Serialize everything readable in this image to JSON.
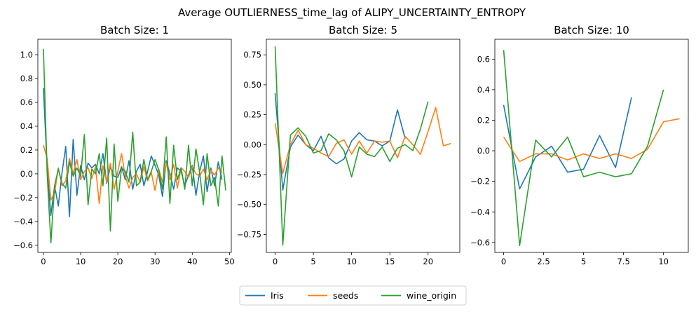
{
  "suptitle": "Average OUTLIERNESS_time_lag of ALIPY_UNCERTAINTY_ENTROPY",
  "colors": {
    "Iris": "#1f77b4",
    "seeds": "#ff7f0e",
    "wine_origin": "#2ca02c"
  },
  "legend": {
    "placement": "bottom-center",
    "entries": [
      "Iris",
      "seeds",
      "wine_origin"
    ]
  },
  "chart_data": [
    {
      "type": "line",
      "title": "Batch Size: 1",
      "xlim": [
        -1.5,
        50.5
      ],
      "ylim": [
        -0.66,
        1.13
      ],
      "xticks": [
        0,
        10,
        20,
        30,
        40,
        50
      ],
      "yticks": [
        -0.6,
        -0.4,
        -0.2,
        0.0,
        0.2,
        0.4,
        0.6,
        0.8,
        1.0
      ],
      "ytick_labels": [
        "−0.6",
        "−0.4",
        "−0.2",
        "0.0",
        "0.2",
        "0.4",
        "0.6",
        "0.8",
        "1.0"
      ],
      "series": [
        {
          "name": "Iris",
          "values": [
            0.72,
            0.05,
            -0.35,
            -0.1,
            -0.27,
            0.01,
            0.23,
            -0.36,
            0.29,
            -0.18,
            0.07,
            -0.05,
            0.09,
            0.05,
            0.08,
            0.0,
            0.17,
            -0.08,
            0.06,
            -0.02,
            -0.03,
            0.06,
            -0.05,
            0.11,
            -0.13,
            0.02,
            0.08,
            -0.1,
            0.02,
            0.15,
            0.07,
            -0.01,
            -0.19,
            0.11,
            0.0,
            -0.13,
            0.05,
            0.02,
            -0.1,
            -0.01,
            0.07,
            -0.18,
            0.02,
            0.15,
            -0.15,
            0.05,
            -0.1,
            0.1,
            -0.05
          ]
        },
        {
          "name": "seeds",
          "values": [
            0.24,
            0.13,
            -0.22,
            -0.16,
            0.05,
            -0.1,
            -0.06,
            0.13,
            0.0,
            0.12,
            -0.05,
            0.02,
            0.05,
            -0.04,
            0.06,
            -0.25,
            0.07,
            -0.07,
            0.09,
            -0.13,
            0.02,
            0.17,
            -0.02,
            -0.12,
            -0.03,
            0.0,
            -0.07,
            0.06,
            -0.06,
            0.01,
            -0.14,
            0.04,
            -0.07,
            0.09,
            -0.05,
            0.08,
            -0.12,
            0.05,
            0.02,
            -0.03,
            0.06,
            0.0,
            -0.02,
            0.04,
            -0.05,
            0.03,
            -0.01,
            0.05,
            0.01
          ]
        },
        {
          "name": "wine_origin",
          "values": [
            1.05,
            0.0,
            -0.58,
            -0.1,
            0.04,
            -0.08,
            -0.12,
            0.1,
            -0.02,
            0.05,
            -0.02,
            0.33,
            -0.26,
            0.04,
            0.0,
            0.17,
            -0.1,
            0.3,
            -0.48,
            0.25,
            -0.23,
            0.05,
            0.02,
            -0.07,
            0.35,
            -0.1,
            -0.07,
            0.12,
            -0.05,
            0.02,
            0.12,
            0.03,
            -0.13,
            0.31,
            -0.25,
            0.24,
            -0.05,
            0.05,
            -0.13,
            0.24,
            -0.1,
            0.21,
            0.01,
            -0.26,
            0.17,
            -0.1,
            -0.03,
            -0.27,
            0.15,
            -0.14
          ]
        }
      ]
    },
    {
      "type": "line",
      "title": "Batch Size: 5",
      "xlim": [
        -1.15,
        24.15
      ],
      "ylim": [
        -0.9,
        0.88
      ],
      "xticks": [
        0,
        5,
        10,
        15,
        20
      ],
      "yticks": [
        -0.75,
        -0.5,
        -0.25,
        0.0,
        0.25,
        0.5,
        0.75
      ],
      "ytick_labels": [
        "−0.75",
        "−0.50",
        "−0.25",
        "0.00",
        "0.25",
        "0.50",
        "0.75"
      ],
      "series": [
        {
          "name": "Iris",
          "values": [
            0.43,
            -0.38,
            -0.02,
            0.08,
            0.0,
            -0.05,
            0.07,
            -0.11,
            -0.16,
            -0.12,
            0.03,
            0.1,
            0.04,
            0.03,
            -0.01,
            0.03,
            0.29,
            0.05
          ]
        },
        {
          "name": "seeds",
          "values": [
            0.18,
            -0.24,
            0.0,
            0.12,
            0.0,
            -0.03,
            -0.07,
            -0.1,
            0.01,
            0.04,
            -0.08,
            0.03,
            -0.07,
            0.03,
            0.02,
            0.03,
            -0.11,
            0.07,
            0.0,
            -0.08,
            0.11,
            0.31,
            -0.01,
            0.01
          ]
        },
        {
          "name": "wine_origin",
          "values": [
            0.82,
            -0.84,
            0.08,
            0.14,
            0.07,
            -0.07,
            -0.05,
            0.09,
            0.04,
            -0.05,
            -0.27,
            -0.02,
            -0.08,
            -0.1,
            -0.02,
            -0.14,
            -0.03,
            0.0,
            -0.05,
            0.13,
            0.36
          ]
        }
      ]
    },
    {
      "type": "line",
      "title": "Batch Size: 10",
      "xlim": [
        -0.55,
        11.55
      ],
      "ylim": [
        -0.665,
        0.73
      ],
      "xticks": [
        0,
        2.5,
        5,
        7.5,
        10
      ],
      "yticks": [
        -0.6,
        -0.4,
        -0.2,
        0.0,
        0.2,
        0.4,
        0.6
      ],
      "ytick_labels": [
        "−0.6",
        "−0.4",
        "−0.2",
        "0.0",
        "0.2",
        "0.4",
        "0.6"
      ],
      "series": [
        {
          "name": "Iris",
          "values": [
            0.3,
            -0.25,
            -0.04,
            0.03,
            -0.14,
            -0.12,
            0.1,
            -0.11,
            0.35
          ]
        },
        {
          "name": "seeds",
          "values": [
            0.09,
            -0.07,
            -0.02,
            -0.02,
            -0.06,
            -0.02,
            -0.05,
            -0.02,
            -0.05,
            0.01,
            0.19,
            0.21
          ]
        },
        {
          "name": "wine_origin",
          "values": [
            0.66,
            -0.62,
            0.07,
            -0.04,
            0.09,
            -0.17,
            -0.14,
            -0.17,
            -0.15,
            0.03,
            0.4
          ]
        }
      ]
    }
  ]
}
